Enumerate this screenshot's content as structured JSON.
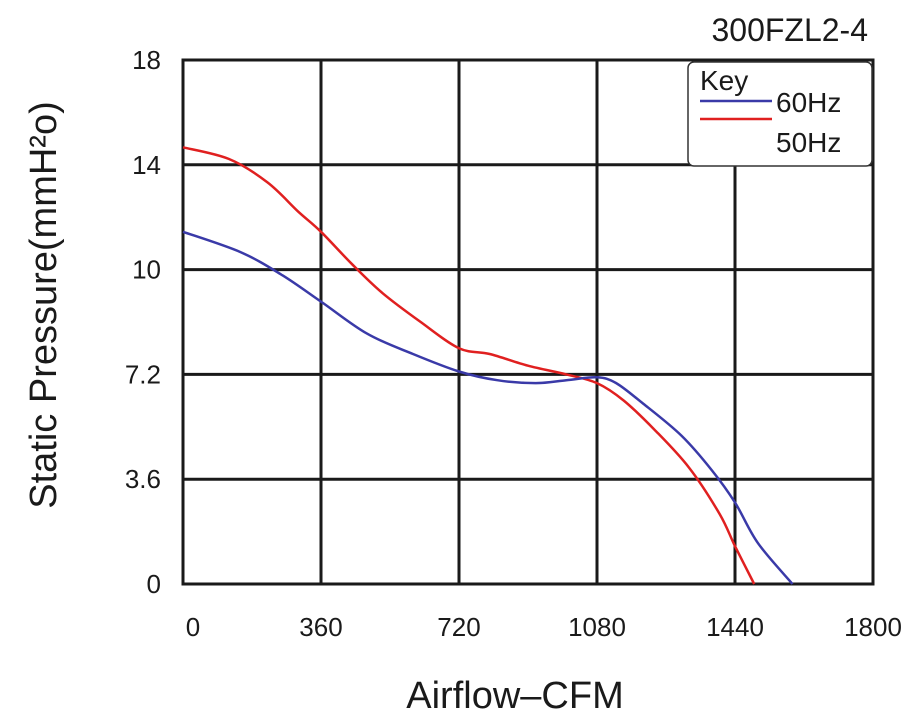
{
  "chart_data": {
    "type": "line",
    "title": "300FZL2-4",
    "xlabel": "Airflow–CFM",
    "ylabel": "Static Pressure(mmH²o)",
    "xlim": [
      0,
      1800
    ],
    "ylim": [
      0,
      18
    ],
    "xticks": [
      0,
      360,
      720,
      1080,
      1440,
      1800
    ],
    "yticks": [
      0,
      3.6,
      7.2,
      10,
      14,
      18
    ],
    "xtick_labels": [
      "0",
      "360",
      "720",
      "1080",
      "1440",
      "1800"
    ],
    "ytick_labels": [
      "0",
      "3.6",
      "7.2",
      "10",
      "14",
      "18"
    ],
    "grid": true,
    "legend": {
      "title": "Key",
      "placement": "top-right"
    },
    "series": [
      {
        "name": "60Hz",
        "color": "#3a3aa8",
        "x": [
          0,
          150,
          260,
          360,
          480,
          600,
          720,
          820,
          920,
          1000,
          1080,
          1130,
          1200,
          1300,
          1380,
          1440,
          1500,
          1590
        ],
        "y": [
          12.1,
          11.4,
          10.6,
          9.7,
          8.6,
          7.9,
          7.3,
          7.0,
          6.9,
          7.0,
          7.1,
          6.9,
          6.2,
          5.1,
          3.9,
          2.8,
          1.4,
          0
        ]
      },
      {
        "name": "50Hz",
        "color": "#e02020",
        "x": [
          0,
          120,
          220,
          300,
          360,
          440,
          520,
          620,
          720,
          800,
          900,
          1000,
          1080,
          1150,
          1230,
          1320,
          1400,
          1440,
          1490
        ],
        "y": [
          15.0,
          14.6,
          13.8,
          12.8,
          12.1,
          11.0,
          10.0,
          9.0,
          8.1,
          7.9,
          7.5,
          7.2,
          6.9,
          6.3,
          5.3,
          4.0,
          2.4,
          1.3,
          0
        ]
      }
    ]
  }
}
